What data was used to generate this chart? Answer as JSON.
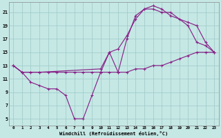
{
  "xlabel": "Windchill (Refroidissement éolien,°C)",
  "xlim": [
    -0.5,
    23.5
  ],
  "ylim": [
    4.0,
    22.5
  ],
  "xticks": [
    0,
    1,
    2,
    3,
    4,
    5,
    6,
    7,
    8,
    9,
    10,
    11,
    12,
    13,
    14,
    15,
    16,
    17,
    18,
    19,
    20,
    21,
    22,
    23
  ],
  "yticks": [
    5,
    7,
    9,
    11,
    13,
    15,
    17,
    19,
    21
  ],
  "bg_color": "#c5e8e5",
  "grid_color": "#9ec8c5",
  "line_color": "#882288",
  "line1_x": [
    0,
    1,
    2,
    3,
    4,
    5,
    6,
    7,
    8,
    9,
    10,
    11,
    12,
    13,
    14,
    15,
    16,
    17,
    18,
    19,
    20,
    21,
    22,
    23
  ],
  "line1_y": [
    13,
    12,
    12,
    12,
    12,
    12,
    12,
    12,
    12,
    12,
    12,
    12,
    12,
    12,
    12.5,
    12.5,
    13,
    13,
    13.5,
    14,
    14.5,
    15,
    15,
    15
  ],
  "line2_x": [
    0,
    1,
    2,
    3,
    4,
    5,
    6,
    7,
    8,
    9,
    10,
    11,
    12,
    13,
    14,
    15,
    16,
    17,
    18,
    20,
    21,
    22,
    23
  ],
  "line2_y": [
    13,
    12,
    10.5,
    10,
    9.5,
    9.5,
    8.5,
    5,
    5,
    8.5,
    12,
    15,
    12,
    17,
    20.5,
    21.5,
    22,
    21.5,
    20.5,
    19.5,
    19,
    16.5,
    15
  ],
  "line3_x": [
    0,
    1,
    2,
    3,
    10,
    11,
    12,
    13,
    14,
    15,
    16,
    17,
    18,
    19,
    20,
    21,
    22,
    23
  ],
  "line3_y": [
    13,
    12,
    12,
    12,
    12.5,
    15,
    15.5,
    17.5,
    20,
    21.5,
    21.5,
    21,
    21,
    20,
    19,
    16.5,
    16,
    15
  ]
}
